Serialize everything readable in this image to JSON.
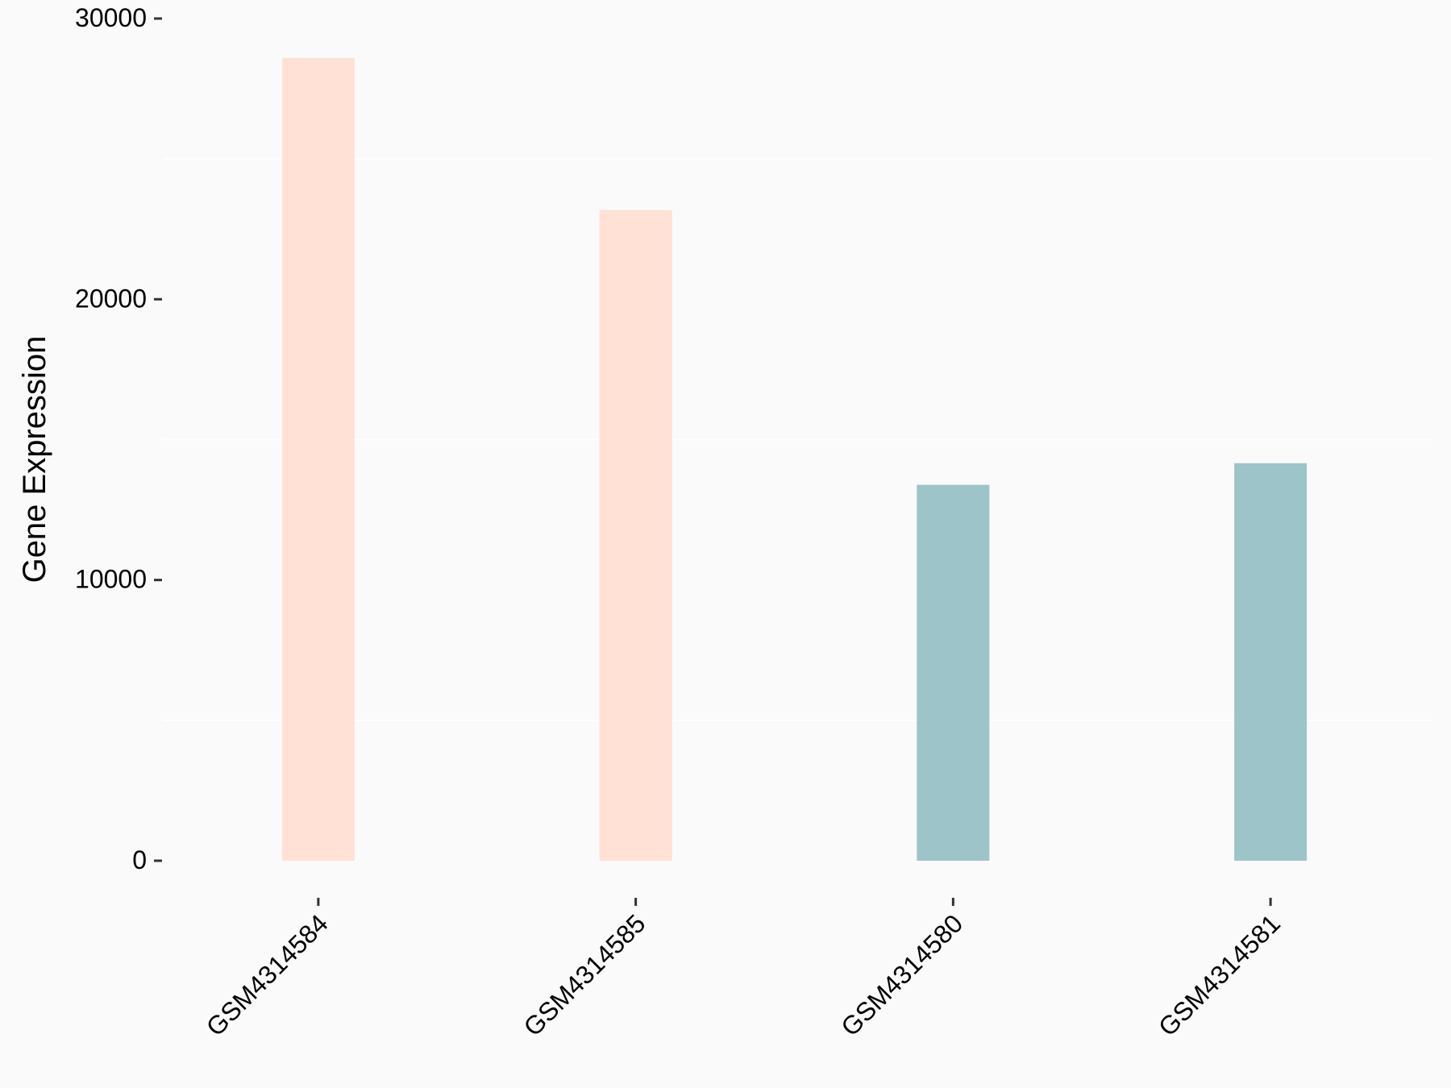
{
  "chart_data": {
    "type": "bar",
    "title": "",
    "xlabel": "",
    "ylabel": "Gene Expression",
    "categories": [
      "GSM4314584",
      "GSM4314585",
      "GSM4314580",
      "GSM4314581"
    ],
    "values": [
      28600,
      23180,
      13390,
      14160
    ],
    "bar_colors": [
      "#FFE1D6",
      "#FFE1D6",
      "#9DC4C8",
      "#9DC4C8"
    ],
    "ylim": [
      0,
      30000
    ],
    "yticks": [
      "0",
      "10000",
      "20000",
      "30000"
    ],
    "grid": "minor horizontal only (white)",
    "legend": "none",
    "background": "#FAFAFA"
  }
}
